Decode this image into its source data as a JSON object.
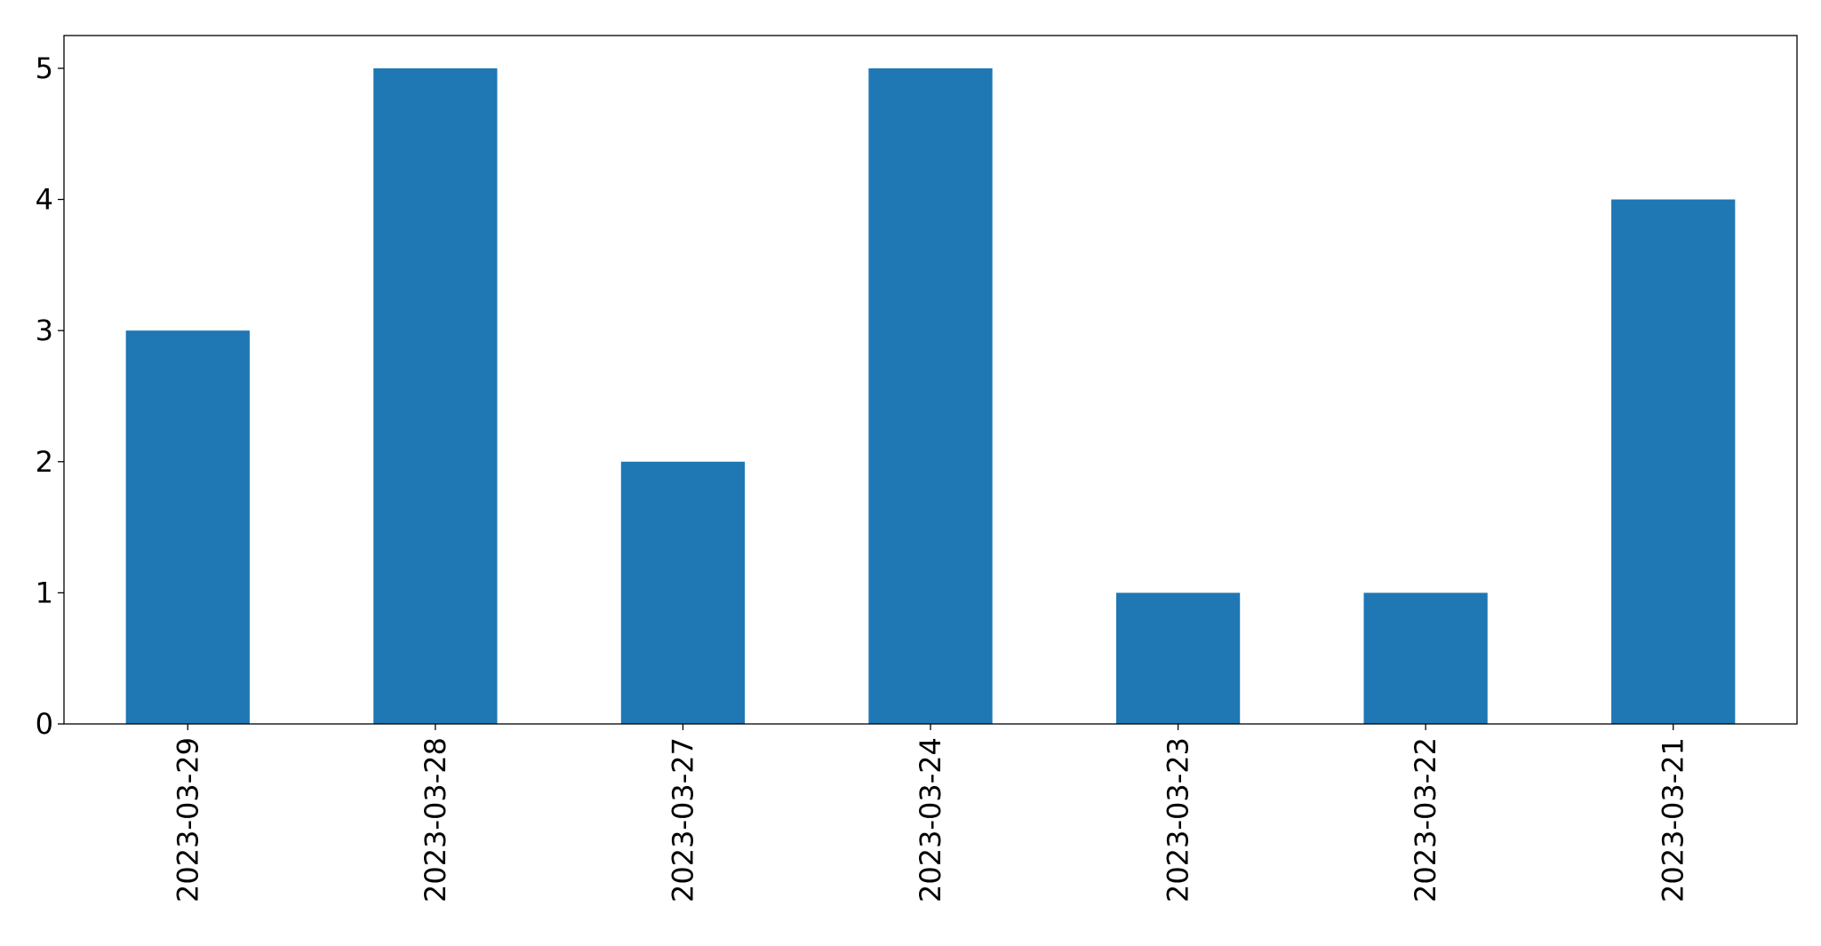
{
  "chart_data": {
    "type": "bar",
    "title": "",
    "xlabel": "",
    "ylabel": "",
    "categories": [
      "2023-03-29",
      "2023-03-28",
      "2023-03-27",
      "2023-03-24",
      "2023-03-23",
      "2023-03-22",
      "2023-03-21"
    ],
    "values": [
      3,
      5,
      2,
      5,
      1,
      1,
      4
    ],
    "ylim": [
      0,
      5.25
    ],
    "yticks": [
      0,
      1,
      2,
      3,
      4,
      5
    ],
    "grid": false,
    "legend": "none",
    "bar_color": "#1f77b4"
  }
}
